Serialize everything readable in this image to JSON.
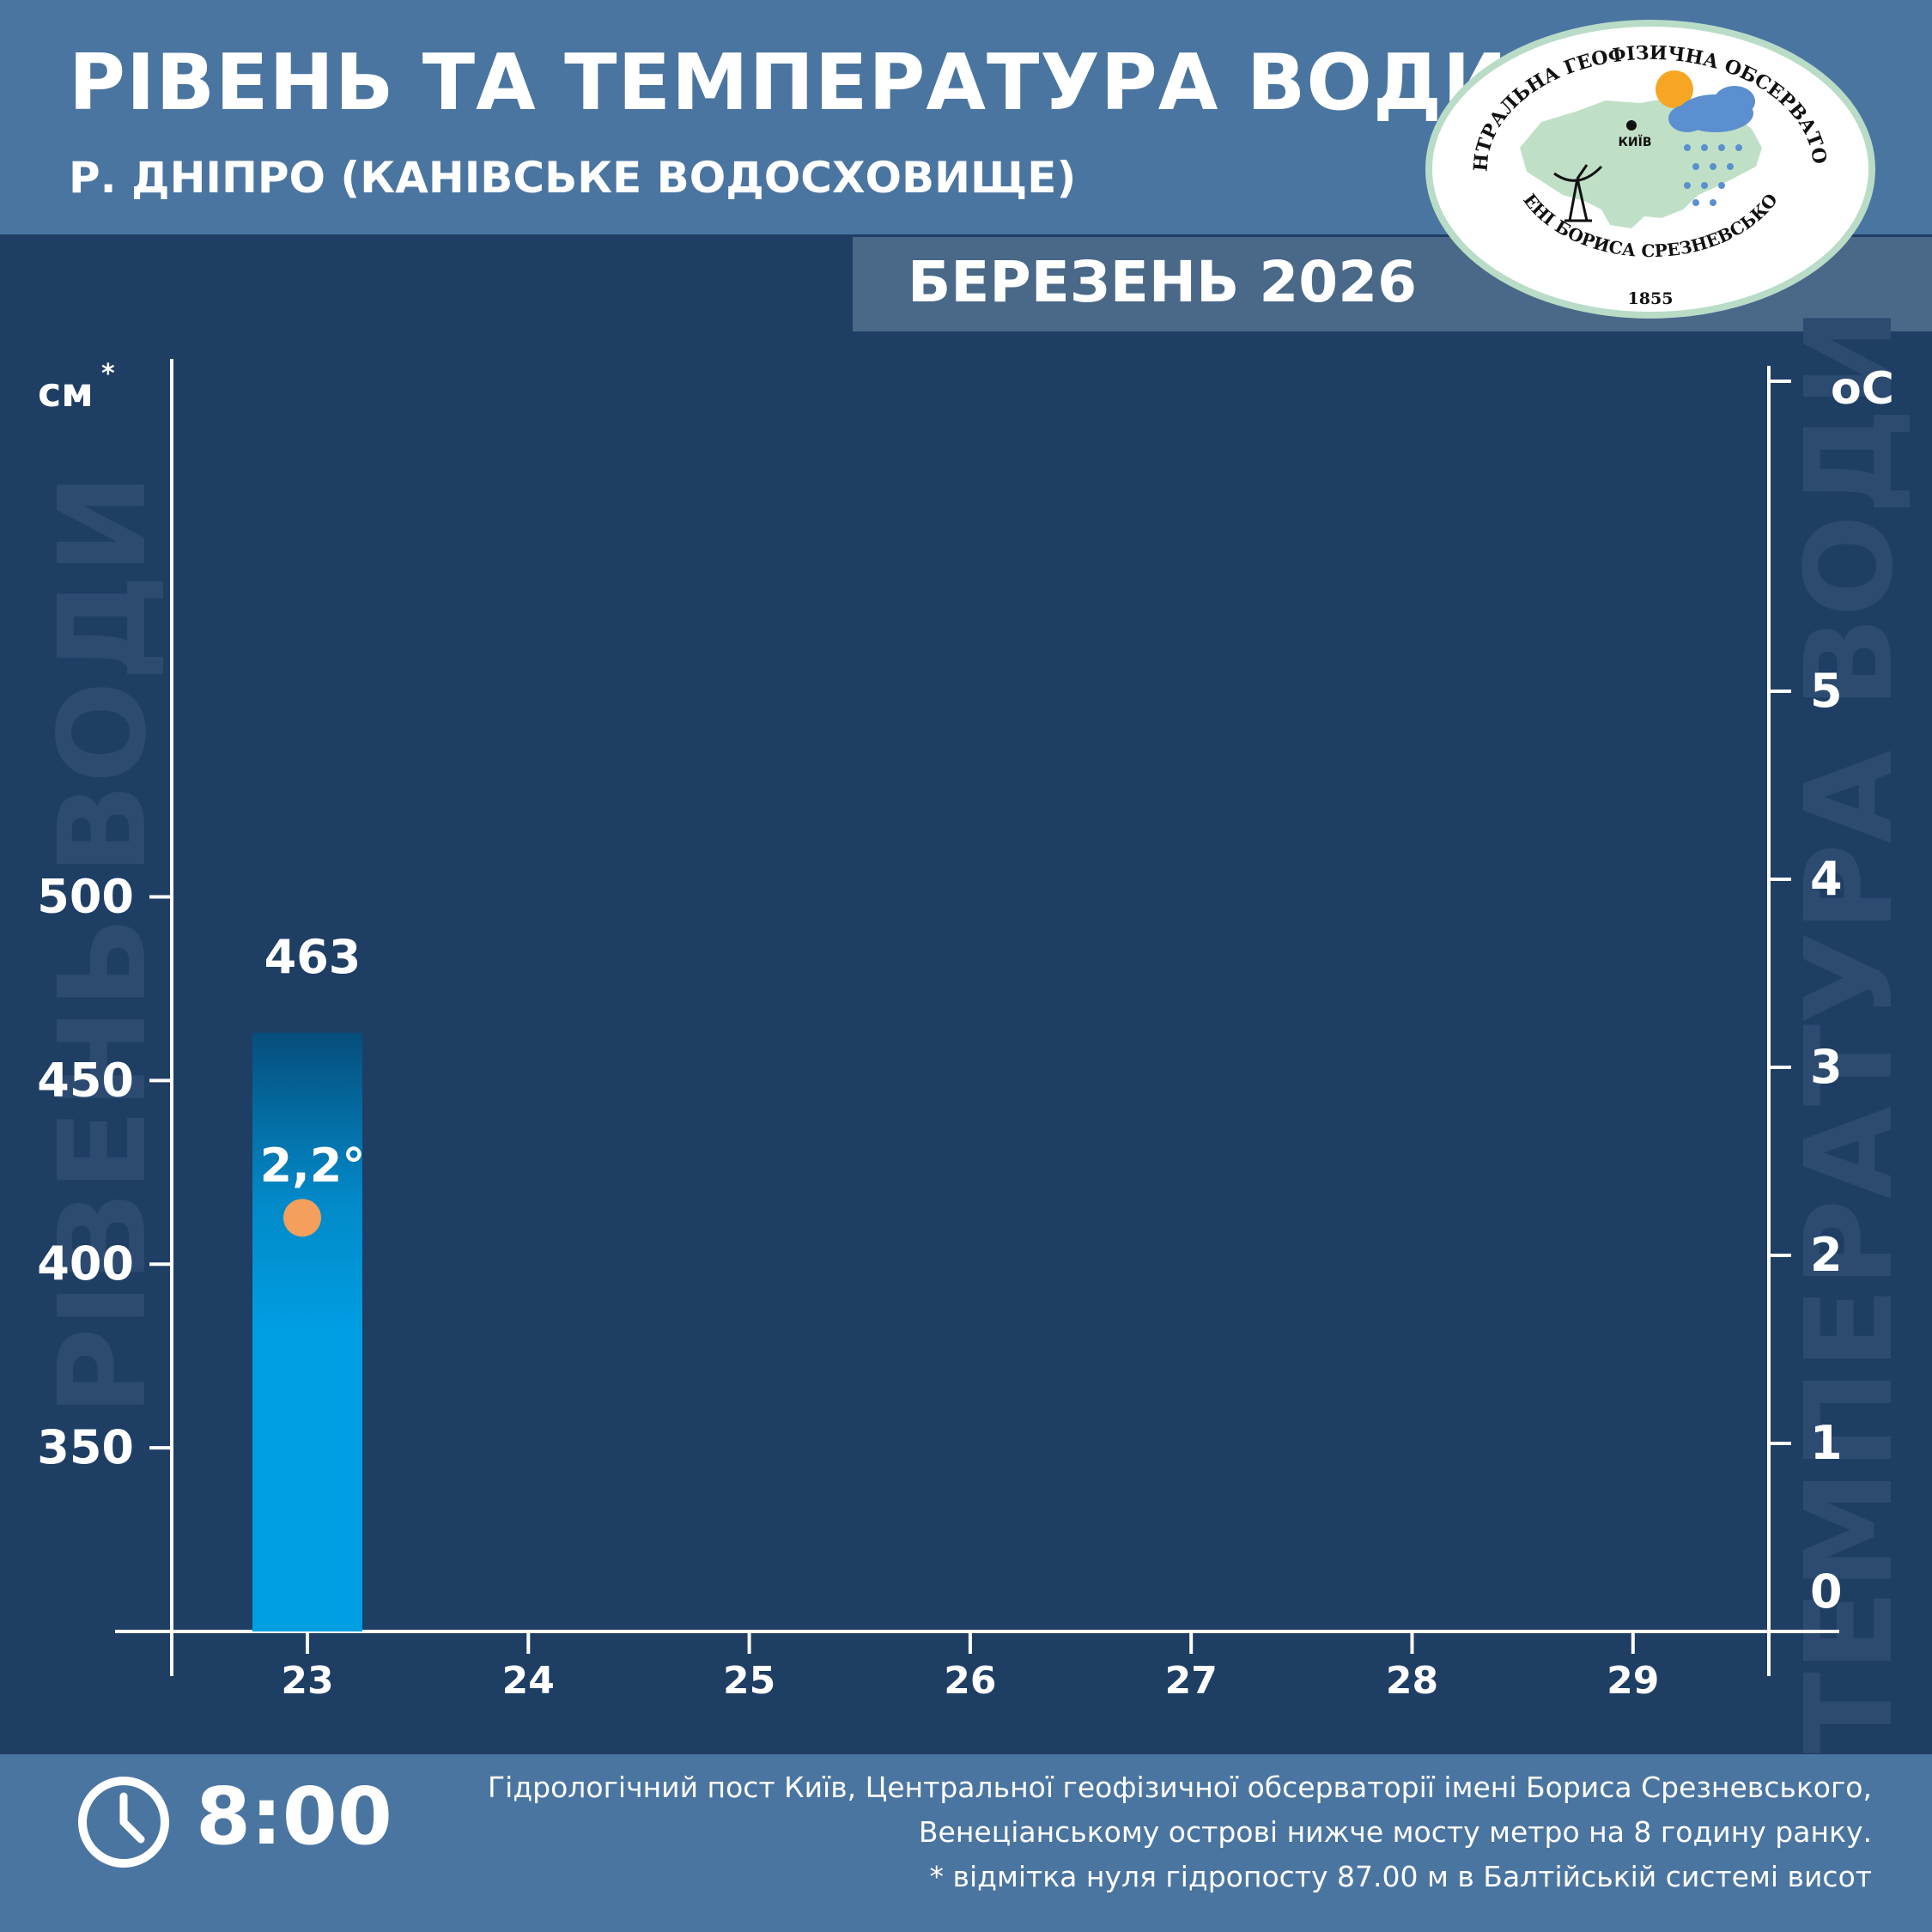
{
  "header": {
    "title": "РІВЕНЬ ТА ТЕМПЕРАТУРА ВОДИ",
    "subtitle": "Р. ДНІПРО (КАНІВСЬКЕ ВОДОСХОВИЩЕ)",
    "month": "БЕРЕЗЕНЬ 2026"
  },
  "logo": {
    "top_text": "ЦЕНТРАЛЬНА ГЕОФІЗИЧНА ОБСЕРВАТОРІЯ",
    "bottom_text": "ІМЕНІ БОРИСА СРЕЗНЕВСЬКОГО",
    "year": "1855",
    "city": "КИЇВ"
  },
  "chart_data": {
    "type": "bar",
    "categories": [
      "23",
      "24",
      "25",
      "26",
      "27",
      "28",
      "29"
    ],
    "series": [
      {
        "values": [
          463,
          null,
          null,
          null,
          null,
          null,
          null
        ],
        "value_labels": [
          "463",
          "",
          "",
          "",
          "",
          "",
          ""
        ]
      },
      {
        "values": [
          2.2,
          null,
          null,
          null,
          null,
          null,
          null
        ],
        "value_labels": [
          "2,2°",
          "",
          "",
          "",
          "",
          "",
          ""
        ]
      }
    ],
    "y_left": {
      "unit": "см",
      "unit_mark": "*",
      "label": "РІВЕНЬ ВОДИ",
      "ticks": [
        350,
        400,
        450,
        500
      ],
      "tick_labels": [
        "350",
        "400",
        "450",
        "500"
      ],
      "range": [
        300,
        563
      ]
    },
    "y_right": {
      "unit": "оС",
      "label": "ТЕМПЕРАТУРА ВОДИ",
      "ticks": [
        0,
        1,
        2,
        3,
        4,
        5
      ],
      "tick_labels": [
        "0",
        "1",
        "2",
        "3",
        "4",
        "5"
      ],
      "range": [
        0,
        6.5
      ]
    },
    "grid": false,
    "colors": {
      "bar": "#009ee2",
      "bar_top": "#064e7c",
      "point": "#f4a05c",
      "background": "#1f3e64"
    }
  },
  "footer": {
    "time": "8:00",
    "note_lines": [
      "Гідрологічний пост Київ, Центральної геофізичної обсерваторії імені Бориса Срезневського,",
      "Венеціанському острові нижче мосту метро  на 8 годину ранку.",
      "* відмітка нуля гідропосту 87.00 м в Балтійській системі висот"
    ]
  }
}
